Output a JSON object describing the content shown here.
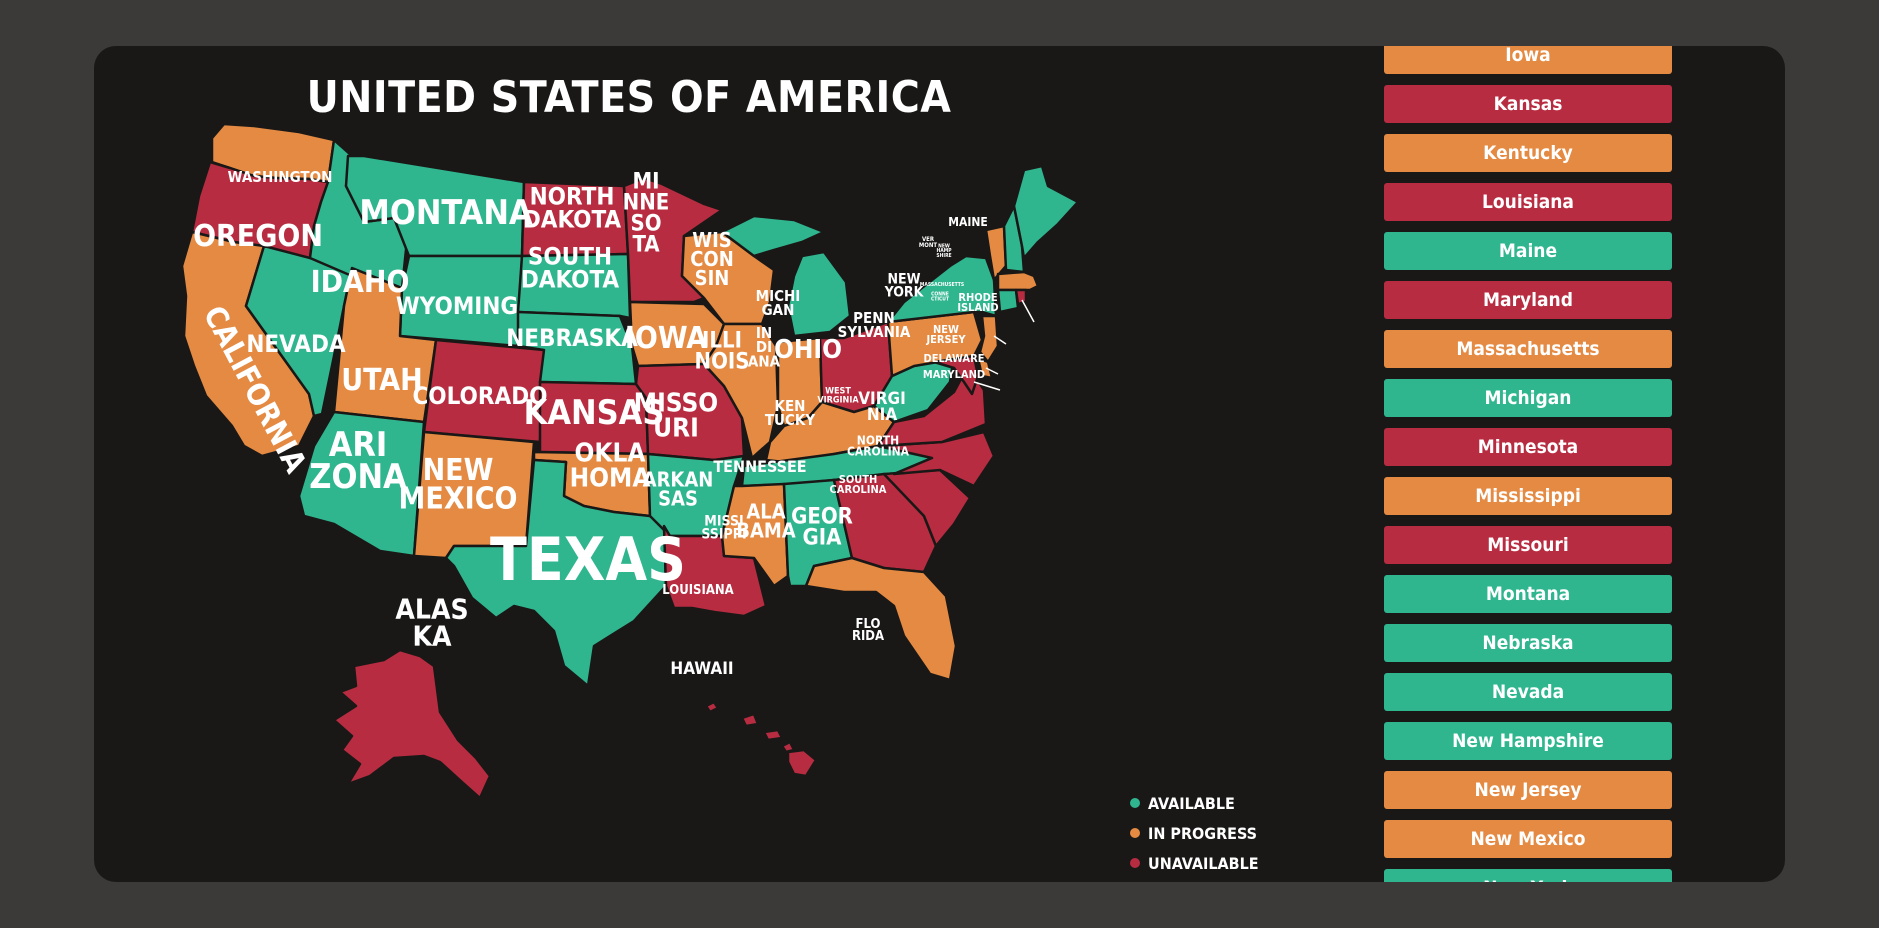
{
  "title": "UNITED STATES OF AMERICA",
  "colors": {
    "available": "#2fb68f",
    "in_progress": "#e48a42",
    "unavailable": "#b72c40"
  },
  "legend": [
    {
      "label": "AVAILABLE",
      "status": "available"
    },
    {
      "label": "IN PROGRESS",
      "status": "in_progress"
    },
    {
      "label": "UNAVAILABLE",
      "status": "unavailable"
    }
  ],
  "map_labels": {
    "washington": "WASHINGTON",
    "oregon": "OREGON",
    "california": "CALIFORNIA",
    "nevada": "NEVADA",
    "idaho": "IDAHO",
    "montana": "MONTANA",
    "wyoming": "WYOMING",
    "utah": "UTAH",
    "arizona": [
      "ARI",
      "ZONA"
    ],
    "colorado": "COLORADO",
    "new_mexico": [
      "NEW",
      "MEXICO"
    ],
    "north_dakota": [
      "NORTH",
      "DAKOTA"
    ],
    "south_dakota": [
      "SOUTH",
      "DAKOTA"
    ],
    "nebraska": "NEBRASKA",
    "kansas": "KANSAS",
    "oklahoma": [
      "OKLA",
      "HOMA"
    ],
    "texas": "TEXAS",
    "minnesota": [
      "MI",
      "NNE",
      "SO",
      "TA"
    ],
    "iowa": "IOWA",
    "missouri": [
      "MISSO",
      "URI"
    ],
    "arkansas": [
      "ARKAN",
      "SAS"
    ],
    "louisiana": "LOUISIANA",
    "wisconsin": [
      "WIS",
      "CON",
      "SIN"
    ],
    "illinois": [
      "ILLI",
      "NOIS"
    ],
    "michigan": [
      "MICHI",
      "GAN"
    ],
    "indiana": [
      "IN",
      "DI",
      "ANA"
    ],
    "ohio": "OHIO",
    "kentucky": [
      "KEN",
      "TUCKY"
    ],
    "tennessee": "TENNESSEE",
    "mississippi": [
      "MISSI",
      "SSIPPI"
    ],
    "alabama": [
      "ALA",
      "BAMA"
    ],
    "georgia": [
      "GEOR",
      "GIA"
    ],
    "florida": [
      "FLO",
      "RIDA"
    ],
    "south_carolina": [
      "SOUTH",
      "CAROLINA"
    ],
    "north_carolina": [
      "NORTH",
      "CAROLINA"
    ],
    "virginia": [
      "VIRGI",
      "NIA"
    ],
    "west_virginia": [
      "WEST",
      "VIRGINIA"
    ],
    "pennsylvania": [
      "PENN",
      "SYLVANIA"
    ],
    "new_york": [
      "NEW",
      "YORK"
    ],
    "vermont": [
      "VER",
      "MONT"
    ],
    "new_hampshire": [
      "NEW",
      "HAMP",
      "SHIRE"
    ],
    "maine": "MAINE",
    "massachusetts": "MASSACHUSETTS",
    "connecticut": [
      "CONNE",
      "CTICUT"
    ],
    "rhode_island": [
      "RHODE",
      "ISLAND"
    ],
    "new_jersey": [
      "NEW",
      "JERSEY"
    ],
    "delaware": "DELAWARE",
    "maryland": "MARYLAND",
    "alaska": [
      "ALAS",
      "KA"
    ],
    "hawaii": "HAWAII"
  },
  "state_list": [
    {
      "name": "Iowa",
      "status": "in_progress"
    },
    {
      "name": "Kansas",
      "status": "unavailable"
    },
    {
      "name": "Kentucky",
      "status": "in_progress"
    },
    {
      "name": "Louisiana",
      "status": "unavailable"
    },
    {
      "name": "Maine",
      "status": "available"
    },
    {
      "name": "Maryland",
      "status": "unavailable"
    },
    {
      "name": "Massachusetts",
      "status": "in_progress"
    },
    {
      "name": "Michigan",
      "status": "available"
    },
    {
      "name": "Minnesota",
      "status": "unavailable"
    },
    {
      "name": "Mississippi",
      "status": "in_progress"
    },
    {
      "name": "Missouri",
      "status": "unavailable"
    },
    {
      "name": "Montana",
      "status": "available"
    },
    {
      "name": "Nebraska",
      "status": "available"
    },
    {
      "name": "Nevada",
      "status": "available"
    },
    {
      "name": "New Hampshire",
      "status": "available"
    },
    {
      "name": "New Jersey",
      "status": "in_progress"
    },
    {
      "name": "New Mexico",
      "status": "in_progress"
    },
    {
      "name": "New York",
      "status": "available"
    }
  ]
}
